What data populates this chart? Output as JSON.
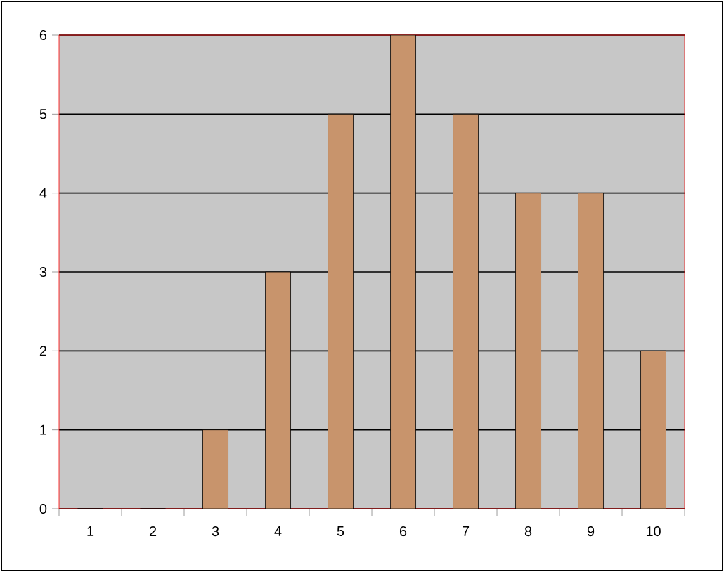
{
  "chart_data": {
    "type": "bar",
    "categories": [
      "1",
      "2",
      "3",
      "4",
      "5",
      "6",
      "7",
      "8",
      "9",
      "10"
    ],
    "values": [
      0,
      0,
      1,
      3,
      5,
      6,
      5,
      4,
      4,
      2
    ],
    "color": "#c8946c",
    "ylim": [
      0,
      6
    ],
    "yticks": [
      0,
      1,
      2,
      3,
      4,
      5,
      6
    ],
    "grid": "y"
  }
}
